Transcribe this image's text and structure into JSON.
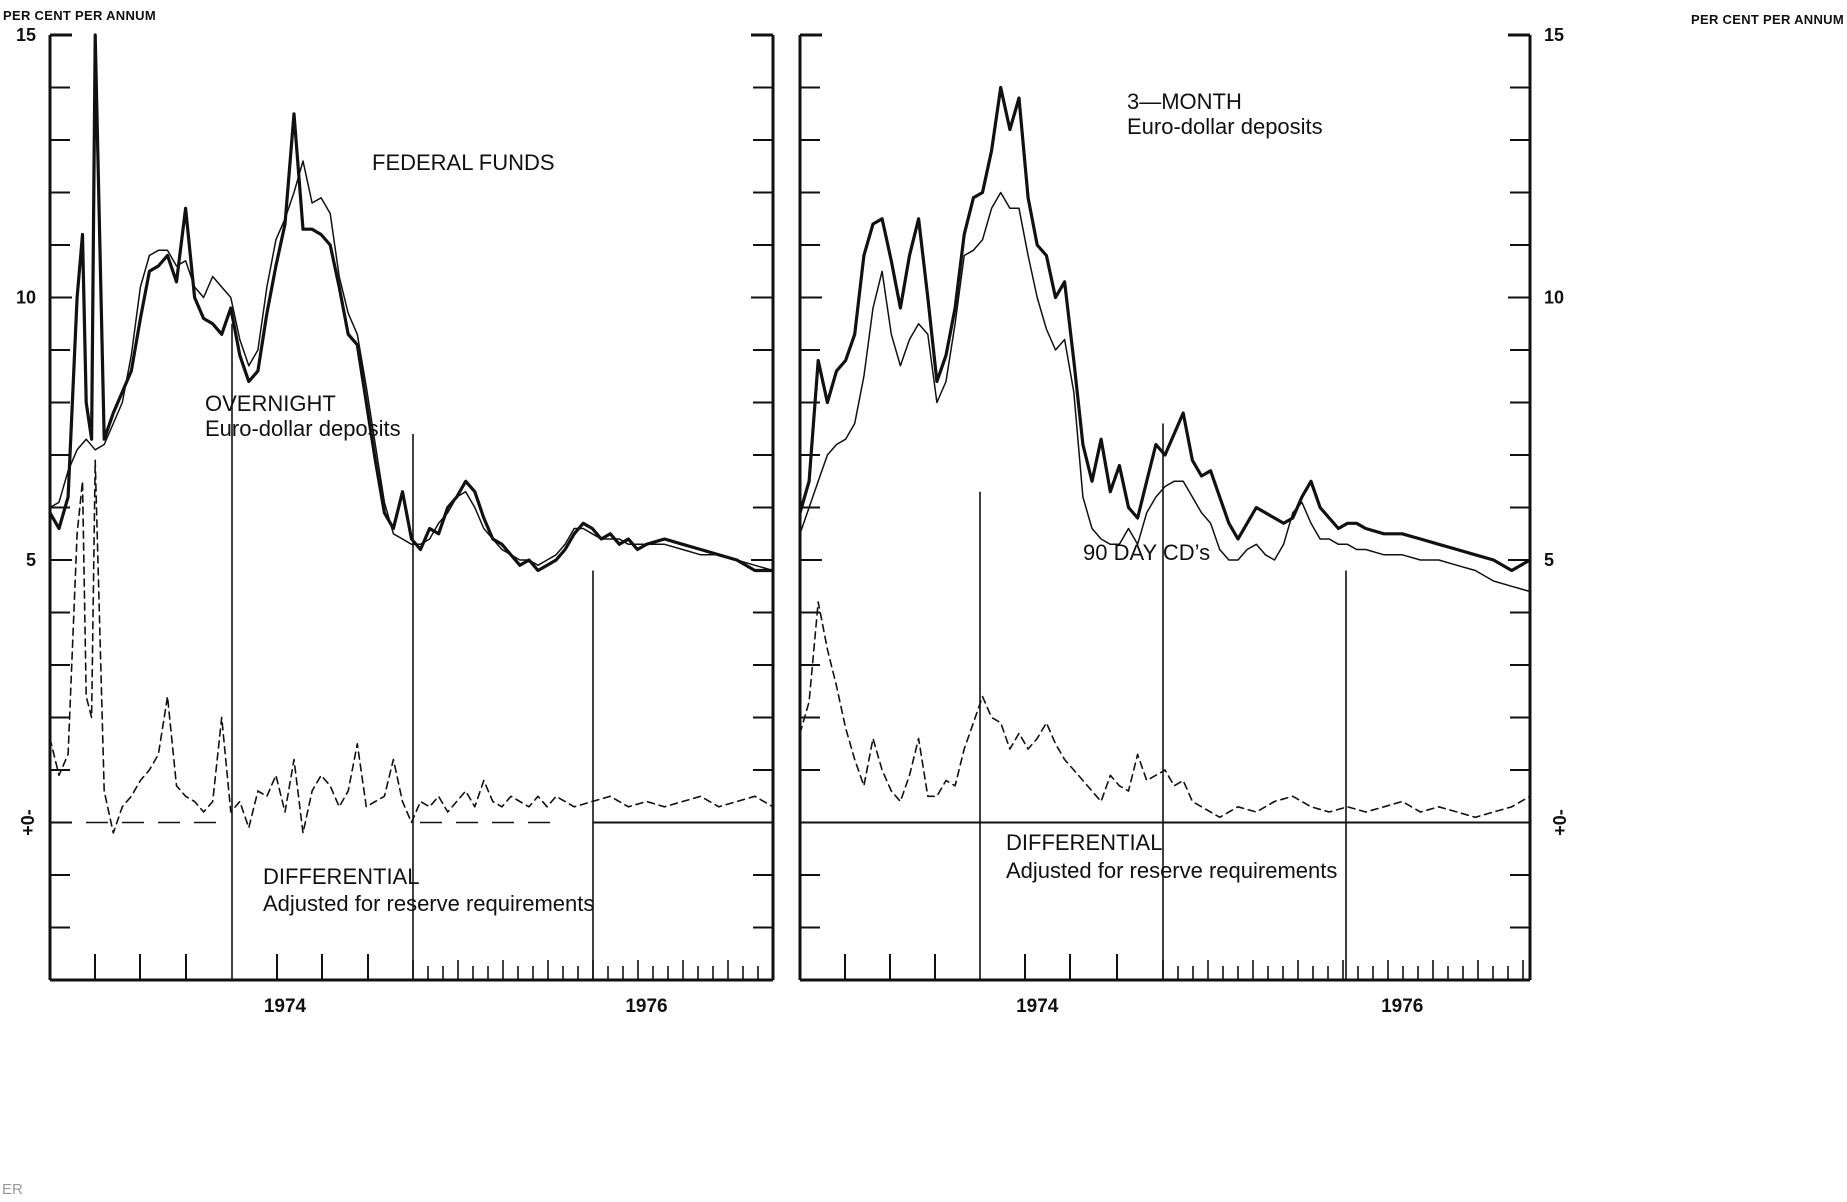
{
  "page": {
    "stray_text": "ER"
  },
  "chart_data": [
    {
      "type": "line",
      "panel": "left",
      "unit_label": "PER CENT PER ANNUM",
      "y_axis_side": "left",
      "ylim": [
        -3,
        15
      ],
      "y_ticks": [
        15,
        10,
        5
      ],
      "zero_tick_label": "+\n0\n-",
      "x_tick_labels": [
        {
          "label": "1974",
          "x": 1974.0
        },
        {
          "label": "1976",
          "x": 1976.0
        }
      ],
      "xlim": [
        1972.7,
        1976.7
      ],
      "annotations": [
        {
          "text": "FEDERAL FUNDS"
        },
        {
          "text": "OVERNIGHT"
        },
        {
          "text": "Euro-dollar deposits"
        },
        {
          "text": "DIFFERENTIAL"
        },
        {
          "text": "Adjusted for reserve requirements"
        }
      ],
      "series": [
        {
          "style": "thick",
          "x": [
            1972.7,
            1972.75,
            1972.8,
            1972.85,
            1972.88,
            1972.9,
            1972.93,
            1972.95,
            1973.0,
            1973.05,
            1973.1,
            1973.15,
            1973.2,
            1973.25,
            1973.3,
            1973.35,
            1973.4,
            1973.45,
            1973.5,
            1973.55,
            1973.6,
            1973.65,
            1973.7,
            1973.75,
            1973.8,
            1973.85,
            1973.9,
            1973.95,
            1974.0,
            1974.05,
            1974.1,
            1974.15,
            1974.2,
            1974.25,
            1974.3,
            1974.35,
            1974.4,
            1974.45,
            1974.5,
            1974.55,
            1974.6,
            1974.65,
            1974.7,
            1974.75,
            1974.8,
            1974.85,
            1974.9,
            1974.95,
            1975.0,
            1975.05,
            1975.1,
            1975.15,
            1975.2,
            1975.25,
            1975.3,
            1975.35,
            1975.4,
            1975.45,
            1975.5,
            1975.55,
            1975.6,
            1975.65,
            1975.7,
            1975.75,
            1975.8,
            1975.85,
            1975.9,
            1975.95,
            1976.0,
            1976.1,
            1976.2,
            1976.3,
            1976.4,
            1976.5,
            1976.6,
            1976.7
          ],
          "values": [
            5.9,
            5.6,
            6.2,
            10.0,
            11.2,
            8.0,
            7.3,
            15.0,
            7.3,
            7.8,
            8.2,
            8.6,
            9.6,
            10.5,
            10.6,
            10.8,
            10.3,
            11.7,
            10.0,
            9.6,
            9.5,
            9.3,
            9.8,
            8.9,
            8.4,
            8.6,
            9.7,
            10.6,
            11.4,
            13.5,
            11.3,
            11.3,
            11.2,
            11.0,
            10.2,
            9.3,
            9.1,
            8.0,
            6.9,
            5.9,
            5.6,
            6.3,
            5.4,
            5.2,
            5.6,
            5.5,
            6.0,
            6.2,
            6.5,
            6.3,
            5.8,
            5.4,
            5.3,
            5.1,
            4.9,
            5.0,
            4.8,
            4.9,
            5.0,
            5.2,
            5.5,
            5.7,
            5.6,
            5.4,
            5.5,
            5.3,
            5.4,
            5.2,
            5.3,
            5.4,
            5.3,
            5.2,
            5.1,
            5.0,
            4.8,
            4.8
          ]
        },
        {
          "style": "thin",
          "x": [
            1972.7,
            1972.75,
            1972.8,
            1972.85,
            1972.9,
            1972.95,
            1973.0,
            1973.05,
            1973.1,
            1973.15,
            1973.2,
            1973.25,
            1973.3,
            1973.35,
            1973.4,
            1973.45,
            1973.5,
            1973.55,
            1973.6,
            1973.65,
            1973.7,
            1973.75,
            1973.8,
            1973.85,
            1973.9,
            1973.95,
            1974.0,
            1974.05,
            1974.1,
            1974.15,
            1974.2,
            1974.25,
            1974.3,
            1974.35,
            1974.4,
            1974.45,
            1974.5,
            1974.55,
            1974.6,
            1974.65,
            1974.7,
            1974.75,
            1974.8,
            1974.85,
            1974.9,
            1974.95,
            1975.0,
            1975.05,
            1975.1,
            1975.15,
            1975.2,
            1975.25,
            1975.3,
            1975.35,
            1975.4,
            1975.45,
            1975.5,
            1975.55,
            1975.6,
            1975.65,
            1975.7,
            1975.75,
            1975.8,
            1975.85,
            1975.9,
            1975.95,
            1976.0,
            1976.1,
            1976.2,
            1976.3,
            1976.4,
            1976.5,
            1976.6,
            1976.7
          ],
          "values": [
            6.0,
            6.1,
            6.7,
            7.1,
            7.3,
            7.1,
            7.2,
            7.6,
            8.0,
            8.9,
            10.2,
            10.8,
            10.9,
            10.9,
            10.6,
            10.7,
            10.2,
            10.0,
            10.4,
            10.2,
            10.0,
            9.2,
            8.7,
            9.0,
            10.2,
            11.1,
            11.5,
            12.0,
            12.6,
            11.8,
            11.9,
            11.6,
            10.4,
            9.7,
            9.3,
            8.3,
            7.2,
            6.1,
            5.5,
            5.4,
            5.3,
            5.3,
            5.4,
            5.7,
            5.9,
            6.2,
            6.3,
            6.0,
            5.6,
            5.4,
            5.2,
            5.1,
            5.0,
            5.0,
            4.9,
            5.0,
            5.1,
            5.3,
            5.6,
            5.6,
            5.5,
            5.4,
            5.4,
            5.4,
            5.3,
            5.3,
            5.3,
            5.3,
            5.2,
            5.1,
            5.1,
            5.0,
            4.9,
            4.8
          ]
        },
        {
          "style": "dashed",
          "name": "DIFFERENTIAL",
          "x": [
            1972.7,
            1972.75,
            1972.8,
            1972.85,
            1972.88,
            1972.9,
            1972.93,
            1972.95,
            1973.0,
            1973.05,
            1973.1,
            1973.15,
            1973.2,
            1973.25,
            1973.3,
            1973.35,
            1973.4,
            1973.45,
            1973.5,
            1973.55,
            1973.6,
            1973.65,
            1973.7,
            1973.75,
            1973.8,
            1973.85,
            1973.9,
            1973.95,
            1974.0,
            1974.05,
            1974.1,
            1974.15,
            1974.2,
            1974.25,
            1974.3,
            1974.35,
            1974.4,
            1974.45,
            1974.5,
            1974.55,
            1974.6,
            1974.65,
            1974.7,
            1974.75,
            1974.8,
            1974.85,
            1974.9,
            1974.95,
            1975.0,
            1975.05,
            1975.1,
            1975.15,
            1975.2,
            1975.25,
            1975.3,
            1975.35,
            1975.4,
            1975.45,
            1975.5,
            1975.6,
            1975.7,
            1975.8,
            1975.9,
            1976.0,
            1976.1,
            1976.2,
            1976.3,
            1976.4,
            1976.5,
            1976.6,
            1976.7
          ],
          "values": [
            1.6,
            0.9,
            1.3,
            5.5,
            6.5,
            2.4,
            2.0,
            6.9,
            0.6,
            -0.2,
            0.3,
            0.5,
            0.8,
            1.0,
            1.3,
            2.4,
            0.7,
            0.5,
            0.4,
            0.2,
            0.4,
            2.0,
            0.2,
            0.4,
            -0.1,
            0.6,
            0.5,
            0.9,
            0.2,
            1.2,
            -0.2,
            0.6,
            0.9,
            0.7,
            0.3,
            0.6,
            1.5,
            0.3,
            0.4,
            0.5,
            1.2,
            0.4,
            0.0,
            0.4,
            0.3,
            0.5,
            0.2,
            0.4,
            0.6,
            0.3,
            0.8,
            0.4,
            0.3,
            0.5,
            0.4,
            0.3,
            0.5,
            0.3,
            0.5,
            0.3,
            0.4,
            0.5,
            0.3,
            0.4,
            0.3,
            0.4,
            0.5,
            0.3,
            0.4,
            0.5,
            0.3
          ]
        }
      ]
    },
    {
      "type": "line",
      "panel": "right",
      "unit_label": "PER CENT PER ANNUM",
      "y_axis_side": "right",
      "ylim": [
        -3,
        15
      ],
      "y_ticks": [
        15,
        10,
        5
      ],
      "zero_tick_label": "+\n0\n-",
      "x_tick_labels": [
        {
          "label": "1974",
          "x": 1974.0
        },
        {
          "label": "1976",
          "x": 1976.0
        }
      ],
      "xlim": [
        1972.7,
        1976.7
      ],
      "annotations": [
        {
          "text": "3—MONTH"
        },
        {
          "text": "Euro-dollar deposits"
        },
        {
          "text": "90 DAY CD’s"
        },
        {
          "text": "DIFFERENTIAL"
        },
        {
          "text": "Adjusted for reserve requirements"
        }
      ],
      "series": [
        {
          "style": "thick",
          "x": [
            1972.7,
            1972.75,
            1972.8,
            1972.85,
            1972.9,
            1972.95,
            1973.0,
            1973.05,
            1973.1,
            1973.15,
            1973.2,
            1973.25,
            1973.3,
            1973.35,
            1973.4,
            1973.45,
            1973.5,
            1973.55,
            1973.6,
            1973.65,
            1973.7,
            1973.75,
            1973.8,
            1973.85,
            1973.9,
            1973.95,
            1974.0,
            1974.05,
            1974.1,
            1974.15,
            1974.2,
            1974.25,
            1974.3,
            1974.35,
            1974.4,
            1974.45,
            1974.5,
            1974.55,
            1974.6,
            1974.65,
            1974.7,
            1974.75,
            1974.8,
            1974.85,
            1974.9,
            1974.95,
            1975.0,
            1975.05,
            1975.1,
            1975.15,
            1975.2,
            1975.25,
            1975.3,
            1975.35,
            1975.4,
            1975.45,
            1975.5,
            1975.55,
            1975.6,
            1975.65,
            1975.7,
            1975.75,
            1975.8,
            1975.9,
            1976.0,
            1976.1,
            1976.2,
            1976.3,
            1976.4,
            1976.5,
            1976.6,
            1976.7
          ],
          "values": [
            5.9,
            6.5,
            8.8,
            8.0,
            8.6,
            8.8,
            9.3,
            10.8,
            11.4,
            11.5,
            10.7,
            9.8,
            10.8,
            11.5,
            10.0,
            8.4,
            8.9,
            9.8,
            11.2,
            11.9,
            12.0,
            12.8,
            14.0,
            13.2,
            13.8,
            11.9,
            11.0,
            10.8,
            10.0,
            10.3,
            8.8,
            7.2,
            6.5,
            7.3,
            6.3,
            6.8,
            6.0,
            5.8,
            6.5,
            7.2,
            7.0,
            7.4,
            7.8,
            6.9,
            6.6,
            6.7,
            6.2,
            5.7,
            5.4,
            5.7,
            6.0,
            5.9,
            5.8,
            5.7,
            5.8,
            6.2,
            6.5,
            6.0,
            5.8,
            5.6,
            5.7,
            5.7,
            5.6,
            5.5,
            5.5,
            5.4,
            5.3,
            5.2,
            5.1,
            5.0,
            4.8,
            5.0
          ]
        },
        {
          "style": "thin",
          "x": [
            1972.7,
            1972.75,
            1972.8,
            1972.85,
            1972.9,
            1972.95,
            1973.0,
            1973.05,
            1973.1,
            1973.15,
            1973.2,
            1973.25,
            1973.3,
            1973.35,
            1973.4,
            1973.45,
            1973.5,
            1973.55,
            1973.6,
            1973.65,
            1973.7,
            1973.75,
            1973.8,
            1973.85,
            1973.9,
            1973.95,
            1974.0,
            1974.05,
            1974.1,
            1974.15,
            1974.2,
            1974.25,
            1974.3,
            1974.35,
            1974.4,
            1974.45,
            1974.5,
            1974.55,
            1974.6,
            1974.65,
            1974.7,
            1974.75,
            1974.8,
            1974.85,
            1974.9,
            1974.95,
            1975.0,
            1975.05,
            1975.1,
            1975.15,
            1975.2,
            1975.25,
            1975.3,
            1975.35,
            1975.4,
            1975.45,
            1975.5,
            1975.55,
            1975.6,
            1975.65,
            1975.7,
            1975.75,
            1975.8,
            1975.9,
            1976.0,
            1976.1,
            1976.2,
            1976.3,
            1976.4,
            1976.5,
            1976.6,
            1976.7
          ],
          "values": [
            5.5,
            6.0,
            6.5,
            7.0,
            7.2,
            7.3,
            7.6,
            8.5,
            9.8,
            10.5,
            9.3,
            8.7,
            9.2,
            9.5,
            9.3,
            8.0,
            8.4,
            9.5,
            10.8,
            10.9,
            11.1,
            11.7,
            12.0,
            11.7,
            11.7,
            10.8,
            10.0,
            9.4,
            9.0,
            9.2,
            8.2,
            6.2,
            5.6,
            5.4,
            5.3,
            5.3,
            5.6,
            5.3,
            5.9,
            6.2,
            6.4,
            6.5,
            6.5,
            6.2,
            5.9,
            5.7,
            5.2,
            5.0,
            5.0,
            5.2,
            5.3,
            5.1,
            5.0,
            5.3,
            5.9,
            6.1,
            5.7,
            5.4,
            5.4,
            5.3,
            5.3,
            5.2,
            5.2,
            5.1,
            5.1,
            5.0,
            5.0,
            4.9,
            4.8,
            4.6,
            4.5,
            4.4
          ]
        },
        {
          "style": "dashed",
          "name": "DIFFERENTIAL",
          "x": [
            1972.7,
            1972.75,
            1972.8,
            1972.85,
            1972.9,
            1972.95,
            1973.0,
            1973.05,
            1973.1,
            1973.15,
            1973.2,
            1973.25,
            1973.3,
            1973.35,
            1973.4,
            1973.45,
            1973.5,
            1973.55,
            1973.6,
            1973.65,
            1973.7,
            1973.75,
            1973.8,
            1973.85,
            1973.9,
            1973.95,
            1974.0,
            1974.05,
            1974.1,
            1974.15,
            1974.2,
            1974.25,
            1974.3,
            1974.35,
            1974.4,
            1974.45,
            1974.5,
            1974.55,
            1974.6,
            1974.65,
            1974.7,
            1974.75,
            1974.8,
            1974.85,
            1974.9,
            1974.95,
            1975.0,
            1975.1,
            1975.2,
            1975.3,
            1975.4,
            1975.5,
            1975.6,
            1975.7,
            1975.8,
            1975.9,
            1976.0,
            1976.1,
            1976.2,
            1976.3,
            1976.4,
            1976.5,
            1976.6,
            1976.7
          ],
          "values": [
            1.7,
            2.3,
            4.2,
            3.3,
            2.6,
            1.8,
            1.2,
            0.7,
            1.6,
            1.0,
            0.6,
            0.4,
            0.9,
            1.6,
            0.5,
            0.5,
            0.8,
            0.7,
            1.4,
            1.9,
            2.4,
            2.0,
            1.9,
            1.4,
            1.7,
            1.4,
            1.6,
            1.9,
            1.5,
            1.2,
            1.0,
            0.8,
            0.6,
            0.4,
            0.9,
            0.7,
            0.6,
            1.3,
            0.8,
            0.9,
            1.0,
            0.7,
            0.8,
            0.4,
            0.3,
            0.2,
            0.1,
            0.3,
            0.2,
            0.4,
            0.5,
            0.3,
            0.2,
            0.3,
            0.2,
            0.3,
            0.4,
            0.2,
            0.3,
            0.2,
            0.1,
            0.2,
            0.3,
            0.5
          ]
        }
      ]
    }
  ]
}
